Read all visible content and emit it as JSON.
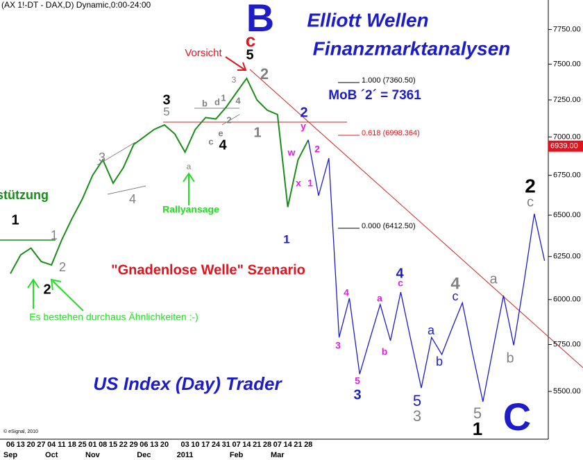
{
  "chart_data": {
    "type": "line",
    "header": "(AX 1!-DT - DAX,D) Dynamic,0:00-24:00",
    "categories": [
      "06",
      "13",
      "20",
      "27",
      "04",
      "11",
      "18",
      "25",
      "01",
      "08",
      "15",
      "22",
      "29",
      "06",
      "13",
      "20",
      null,
      "03",
      "10",
      "17",
      "24",
      "31",
      "07",
      "14",
      "21",
      "28",
      "07",
      "14",
      "21",
      "28",
      null,
      null,
      null,
      null,
      null,
      null,
      null,
      null,
      null,
      null,
      null,
      null,
      null,
      null,
      null,
      null,
      null,
      null,
      null,
      null,
      null,
      null,
      null
    ],
    "x_month_labels": [
      {
        "value": 0,
        "label": "Sep"
      },
      {
        "value": 4,
        "label": "Oct"
      },
      {
        "value": 8,
        "label": "Nov"
      },
      {
        "value": 13,
        "label": "Dec"
      },
      {
        "value": 17,
        "label": "2011"
      },
      {
        "value": 22,
        "label": "Feb"
      },
      {
        "value": 26,
        "label": "Mar"
      }
    ],
    "series": [
      {
        "color": "#1a8c1a",
        "values": [
          6150,
          6260,
          6300,
          6220,
          6200,
          6350,
          6480,
          6600,
          6750,
          6850,
          6700,
          6800,
          6950,
          7000,
          7050,
          7080,
          7020,
          6900,
          7050,
          7130,
          7120,
          7200,
          7300,
          7400,
          7250,
          7180,
          7150,
          6550,
          6850,
          6980,
          null,
          null,
          null,
          null,
          null,
          null,
          null,
          null,
          null,
          null,
          null,
          null,
          null,
          null,
          null,
          null,
          null,
          null,
          null,
          null,
          null,
          null,
          null
        ]
      },
      {
        "color": "#1c1cc8",
        "values": [
          null,
          null,
          null,
          null,
          null,
          null,
          null,
          null,
          null,
          null,
          null,
          null,
          null,
          null,
          null,
          null,
          null,
          null,
          null,
          null,
          null,
          null,
          null,
          null,
          null,
          null,
          null,
          null,
          null,
          6980,
          6621,
          6860,
          5789,
          6008,
          5591,
          5780,
          5973,
          5771,
          6043,
          5770,
          5518,
          5789,
          5696,
          5840,
          5982,
          5700,
          5447,
          5730,
          6023,
          5746,
          6100,
          6508,
          6225
        ]
      }
    ],
    "log_scale": true,
    "ylim": [
      5260,
      7970
    ],
    "yticks": [
      {
        "value": 5500,
        "label": "5500.00"
      },
      {
        "value": 5750,
        "label": "5750.00"
      },
      {
        "value": 6000,
        "label": "6000.00"
      },
      {
        "value": 6250,
        "label": "6250.00"
      },
      {
        "value": 6500,
        "label": "6500.00"
      },
      {
        "value": 6750,
        "label": "6750.00"
      },
      {
        "value": 7000,
        "label": "7000.00"
      },
      {
        "value": 7250,
        "label": "7250.00"
      },
      {
        "value": 7500,
        "label": "7500.00"
      },
      {
        "value": 7750,
        "label": "7750.00"
      }
    ],
    "last_price": {
      "value": 6939,
      "label": "6939.00",
      "color": "#e0141e"
    },
    "fib_levels": [
      {
        "text": "1.000 (7360.50)",
        "color": "#000000"
      },
      {
        "text": "0.618 (6998.364)",
        "color": "#e0141e"
      },
      {
        "text": "0.000 (6412.50)",
        "color": "#000000"
      }
    ],
    "annotations": [
      {
        "text": "B",
        "color": "#1c1cc8"
      },
      {
        "text": "c",
        "color": "#e0141e"
      },
      {
        "text": "Elliott Wellen",
        "color": "#1c1cc8"
      },
      {
        "text": "Finanzmarktanalysen",
        "color": "#1c1cc8"
      },
      {
        "text": "Vorsicht",
        "color": "#e0141e"
      },
      {
        "text": "5",
        "color": "#000000"
      },
      {
        "text": "MoB ´2´ = 7361",
        "color": "#1c1cc8"
      },
      {
        "text": "2",
        "color": "#1c1cc8"
      },
      {
        "text": "y",
        "color": "#e020e0"
      },
      {
        "text": "2",
        "color": "#808080"
      },
      {
        "text": "1",
        "color": "#808080"
      },
      {
        "text": "3",
        "color": "#000000"
      },
      {
        "text": "5",
        "color": "#808080"
      },
      {
        "text": "b",
        "color": "#808080"
      },
      {
        "text": "d",
        "color": "#808080"
      },
      {
        "text": "1",
        "color": "#808080"
      },
      {
        "text": "4",
        "color": "#808080"
      },
      {
        "text": "c",
        "color": "#808080"
      },
      {
        "text": "e",
        "color": "#808080"
      },
      {
        "text": "2",
        "color": "#808080"
      },
      {
        "text": "4",
        "color": "#000000"
      },
      {
        "text": "3",
        "color": "#808080"
      },
      {
        "text": "3",
        "color": "#808080"
      },
      {
        "text": "4",
        "color": "#808080"
      },
      {
        "text": "a",
        "color": "#808080"
      },
      {
        "text": "rstützung",
        "color": "#1a8c1a"
      },
      {
        "text": "Rallyansage",
        "color": "#22dd22"
      },
      {
        "text": "w",
        "color": "#e020e0"
      },
      {
        "text": "x",
        "color": "#e020e0"
      },
      {
        "text": "1",
        "color": "#e020e0"
      },
      {
        "text": "2",
        "color": "#e020e0"
      },
      {
        "text": "1",
        "color": "#1c1cc8"
      },
      {
        "text": "1",
        "color": "#000000"
      },
      {
        "text": "1",
        "color": "#808080"
      },
      {
        "text": "2",
        "color": "#000000"
      },
      {
        "text": "2",
        "color": "#808080"
      },
      {
        "text": "\"Gnadenlose Welle\" Szenario",
        "color": "#e0141e"
      },
      {
        "text": "Es bestehen durchaus Ähnlichkeiten :-)",
        "color": "#22dd22"
      },
      {
        "text": "4",
        "color": "#e020e0"
      },
      {
        "text": "3",
        "color": "#e020e0"
      },
      {
        "text": "5",
        "color": "#e020e0"
      },
      {
        "text": "3",
        "color": "#1c1cc8"
      },
      {
        "text": "a",
        "color": "#e020e0"
      },
      {
        "text": "b",
        "color": "#e020e0"
      },
      {
        "text": "4",
        "color": "#1c1cc8"
      },
      {
        "text": "c",
        "color": "#e020e0"
      },
      {
        "text": "a",
        "color": "#1c1cc8"
      },
      {
        "text": "b",
        "color": "#1c1cc8"
      },
      {
        "text": "c",
        "color": "#1c1cc8"
      },
      {
        "text": "4",
        "color": "#808080"
      },
      {
        "text": "5",
        "color": "#1c1cc8"
      },
      {
        "text": "3",
        "color": "#808080"
      },
      {
        "text": "5",
        "color": "#808080"
      },
      {
        "text": "1",
        "color": "#000000"
      },
      {
        "text": "a",
        "color": "#808080"
      },
      {
        "text": "b",
        "color": "#808080"
      },
      {
        "text": "2",
        "color": "#000000"
      },
      {
        "text": "c",
        "color": "#808080"
      },
      {
        "text": "C",
        "color": "#1c1cc8"
      },
      {
        "text": "US Index (Day) Trader",
        "color": "#1c1cc8"
      },
      {
        "text": "© eSignal, 2010",
        "color": "#000000"
      }
    ]
  }
}
